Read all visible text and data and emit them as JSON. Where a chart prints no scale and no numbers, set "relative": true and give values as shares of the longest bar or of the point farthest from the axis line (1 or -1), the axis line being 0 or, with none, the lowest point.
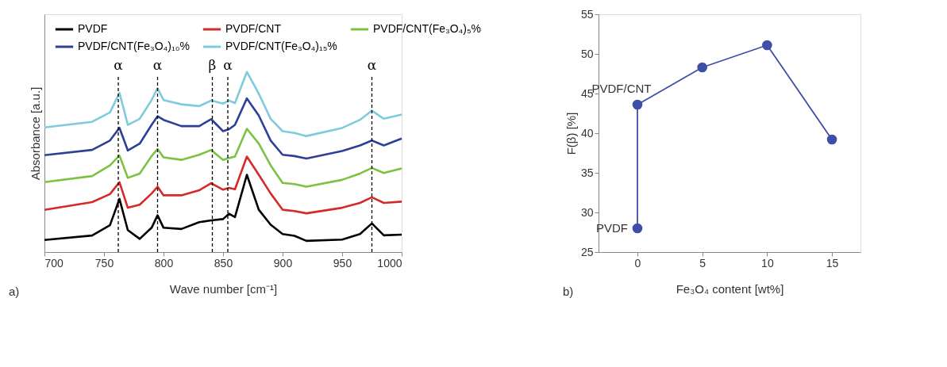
{
  "chart_data": [
    {
      "type": "line",
      "relative": true,
      "xlabel": "Wave number [cm⁻¹]",
      "ylabel": "Absorbance [a.u.]",
      "xlim": [
        700,
        1000
      ],
      "xticks": [
        700,
        750,
        800,
        850,
        900,
        950,
        1000
      ],
      "tick_labels": "x",
      "legend": "top",
      "grid": false,
      "marker": "none",
      "line_style": "solid",
      "x": [
        700,
        740,
        755,
        763,
        770,
        780,
        790,
        795,
        800,
        815,
        830,
        840,
        850,
        855,
        860,
        870,
        880,
        890,
        900,
        910,
        920,
        950,
        965,
        975,
        985,
        1000
      ],
      "series": [
        {
          "name": "PVDF",
          "color": "#000000",
          "values": [
            0.067,
            0.092,
            0.149,
            0.295,
            0.122,
            0.073,
            0.135,
            0.204,
            0.135,
            0.128,
            0.166,
            0.176,
            0.183,
            0.213,
            0.194,
            0.429,
            0.235,
            0.152,
            0.1,
            0.09,
            0.062,
            0.069,
            0.1,
            0.159,
            0.093,
            0.097
          ]
        },
        {
          "name": "PVDF/CNT",
          "color": "#d42a2a",
          "values": [
            0.234,
            0.277,
            0.322,
            0.388,
            0.246,
            0.263,
            0.325,
            0.363,
            0.315,
            0.315,
            0.343,
            0.382,
            0.346,
            0.356,
            0.349,
            0.53,
            0.429,
            0.325,
            0.235,
            0.228,
            0.215,
            0.246,
            0.273,
            0.304,
            0.273,
            0.28
          ]
        },
        {
          "name": "PVDF/CNT(Fe₃O₄)₅%",
          "color": "#7cc242",
          "values": [
            0.388,
            0.422,
            0.481,
            0.536,
            0.412,
            0.436,
            0.533,
            0.572,
            0.526,
            0.512,
            0.54,
            0.567,
            0.512,
            0.522,
            0.53,
            0.684,
            0.602,
            0.481,
            0.384,
            0.377,
            0.363,
            0.401,
            0.436,
            0.467,
            0.439,
            0.464
          ]
        },
        {
          "name": "PVDF/CNT(Fe₃O₄)₁₀%",
          "color": "#2e3f97",
          "values": [
            0.538,
            0.567,
            0.619,
            0.69,
            0.564,
            0.602,
            0.706,
            0.754,
            0.734,
            0.699,
            0.699,
            0.738,
            0.671,
            0.682,
            0.706,
            0.853,
            0.758,
            0.619,
            0.54,
            0.533,
            0.519,
            0.561,
            0.592,
            0.619,
            0.592,
            0.63
          ]
        },
        {
          "name": "PVDF/CNT(Fe₃O₄)₁₅%",
          "color": "#7ecbdc",
          "values": [
            0.692,
            0.723,
            0.775,
            0.884,
            0.706,
            0.74,
            0.844,
            0.909,
            0.844,
            0.82,
            0.81,
            0.841,
            0.824,
            0.841,
            0.827,
            1.0,
            0.879,
            0.74,
            0.671,
            0.661,
            0.644,
            0.689,
            0.734,
            0.785,
            0.74,
            0.763
          ]
        }
      ],
      "ref_lines": [
        {
          "axis": "x",
          "value": 762,
          "label": "α",
          "line_style": "dashed",
          "color": "#000000"
        },
        {
          "axis": "x",
          "value": 795,
          "label": "α",
          "line_style": "dashed",
          "color": "#000000"
        },
        {
          "axis": "x",
          "value": 841,
          "label": "β",
          "line_style": "dashed",
          "color": "#000000"
        },
        {
          "axis": "x",
          "value": 854,
          "label": "α",
          "line_style": "dashed",
          "color": "#000000"
        },
        {
          "axis": "x",
          "value": 975,
          "label": "α",
          "line_style": "dashed",
          "color": "#000000"
        }
      ],
      "annotations": [
        "a)"
      ]
    },
    {
      "type": "line",
      "xlabel": "Fe₃O₄ content [wt%]",
      "ylabel": "F(β) [%]",
      "xlim": [
        -3,
        17.2
      ],
      "xticks": [
        0,
        5,
        10,
        15
      ],
      "ylim": [
        25,
        55
      ],
      "yticks": [
        25,
        30,
        35,
        40,
        45,
        50,
        55
      ],
      "grid": false,
      "legend": false,
      "marker": "circle",
      "line_style": "solid",
      "series": [
        {
          "color": "#3f4fa8",
          "x": [
            0,
            0,
            5,
            10,
            15
          ],
          "values": [
            28,
            43.6,
            48.3,
            51.1,
            39.2
          ]
        }
      ],
      "annotations": [
        {
          "text": "PVDF",
          "x": 0,
          "y": 28
        },
        {
          "text": "PVDF/CNT",
          "x": 0,
          "y": 43.6
        },
        "b)"
      ]
    }
  ]
}
